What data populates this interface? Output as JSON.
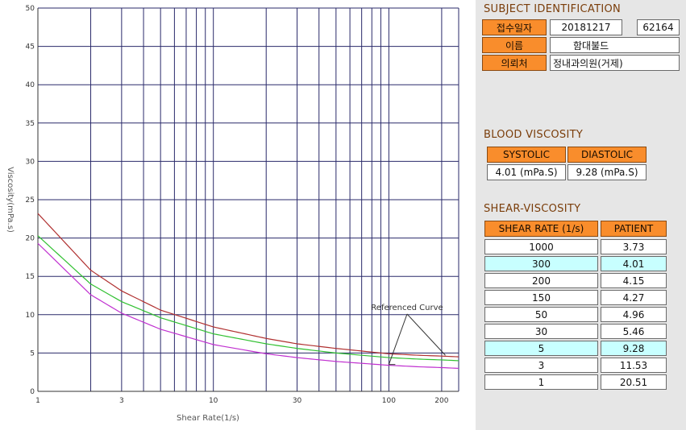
{
  "chart_data": {
    "type": "line",
    "xscale": "log",
    "xlim": [
      1,
      250
    ],
    "ylim": [
      0,
      50
    ],
    "xlabel": "Shear Rate(1/s)",
    "ylabel": "Viscosity(mPa.s)",
    "x_tick_labels": [
      "1",
      "3",
      "10",
      "30",
      "100",
      "200"
    ],
    "y_tick_labels": [
      "0",
      "5",
      "10",
      "15",
      "20",
      "25",
      "30",
      "35",
      "40",
      "45",
      "50"
    ],
    "grid": true,
    "annotation": "Referenced Curve",
    "series": [
      {
        "name": "",
        "color": "#b03030",
        "x": [
          1,
          2,
          3,
          5,
          10,
          20,
          30,
          50,
          100,
          150,
          200,
          250
        ],
        "y": [
          23.2,
          15.8,
          13.1,
          10.6,
          8.4,
          6.9,
          6.2,
          5.6,
          4.9,
          4.7,
          4.6,
          4.5
        ]
      },
      {
        "name": "",
        "color": "#30c030",
        "x": [
          1,
          2,
          3,
          5,
          10,
          20,
          30,
          50,
          100,
          150,
          200,
          250
        ],
        "y": [
          20.3,
          14.0,
          11.7,
          9.6,
          7.5,
          6.2,
          5.6,
          5.0,
          4.4,
          4.2,
          4.1,
          4.0
        ]
      },
      {
        "name": "",
        "color": "#c030d0",
        "x": [
          1,
          2,
          3,
          5,
          10,
          20,
          30,
          50,
          100,
          150,
          200,
          250
        ],
        "y": [
          19.3,
          12.6,
          10.2,
          8.1,
          6.1,
          4.9,
          4.4,
          3.9,
          3.4,
          3.2,
          3.1,
          3.0
        ]
      }
    ]
  },
  "subject": {
    "title": "SUBJECT IDENTIFICATION",
    "receipt_label": "접수일자",
    "receipt_date": "20181217",
    "separator": "-",
    "receipt_no": "62164",
    "name_label": "이름",
    "name_value": "함대불드",
    "clinic_label": "의뢰처",
    "clinic_value": "정내과의원(거제)"
  },
  "blood": {
    "title": "BLOOD VISCOSITY",
    "systolic_label": "SYSTOLIC",
    "diastolic_label": "DIASTOLIC",
    "systolic_value": "4.01 (mPa.S)",
    "diastolic_value": "9.28 (mPa.S)"
  },
  "shear": {
    "title": "SHEAR-VISCOSITY",
    "col_rate": "SHEAR RATE (1/s)",
    "col_patient": "PATIENT",
    "highlight_color": "#c8ffff",
    "rows": [
      {
        "rate": "1000",
        "value": "3.73",
        "highlight": false
      },
      {
        "rate": "300",
        "value": "4.01",
        "highlight": true
      },
      {
        "rate": "200",
        "value": "4.15",
        "highlight": false
      },
      {
        "rate": "150",
        "value": "4.27",
        "highlight": false
      },
      {
        "rate": "50",
        "value": "4.96",
        "highlight": false
      },
      {
        "rate": "30",
        "value": "5.46",
        "highlight": false
      },
      {
        "rate": "5",
        "value": "9.28",
        "highlight": true
      },
      {
        "rate": "3",
        "value": "11.53",
        "highlight": false
      },
      {
        "rate": "1",
        "value": "20.51",
        "highlight": false
      }
    ]
  }
}
